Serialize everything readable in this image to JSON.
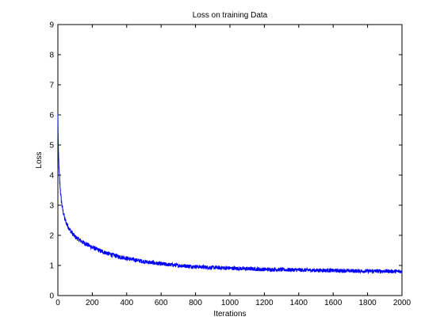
{
  "chart_data": {
    "type": "line",
    "title": "Loss on training Data",
    "xlabel": "Iterations",
    "ylabel": "Loss",
    "xlim": [
      0,
      2000
    ],
    "ylim": [
      0,
      9
    ],
    "x_ticks": [
      0,
      200,
      400,
      600,
      800,
      1000,
      1200,
      1400,
      1600,
      1800,
      2000
    ],
    "y_ticks": [
      0,
      1,
      2,
      3,
      4,
      5,
      6,
      7,
      8,
      9
    ],
    "grid": false,
    "legend": false,
    "series": [
      {
        "color": "#0000ff",
        "x": [
          0,
          2,
          4,
          6,
          8,
          10,
          15,
          20,
          25,
          30,
          40,
          50,
          60,
          70,
          80,
          100,
          125,
          150,
          175,
          200,
          250,
          300,
          350,
          400,
          450,
          500,
          550,
          600,
          700,
          800,
          900,
          1000,
          1100,
          1200,
          1300,
          1400,
          1500,
          1600,
          1700,
          1800,
          1900,
          2000
        ],
        "y": [
          6.0,
          5.1,
          4.6,
          4.3,
          4.05,
          3.85,
          3.45,
          3.15,
          2.95,
          2.8,
          2.55,
          2.4,
          2.28,
          2.18,
          2.1,
          1.95,
          1.85,
          1.75,
          1.68,
          1.6,
          1.48,
          1.38,
          1.3,
          1.24,
          1.18,
          1.13,
          1.09,
          1.05,
          1.0,
          0.96,
          0.93,
          0.91,
          0.89,
          0.87,
          0.86,
          0.85,
          0.84,
          0.83,
          0.82,
          0.81,
          0.81,
          0.8
        ]
      }
    ]
  }
}
